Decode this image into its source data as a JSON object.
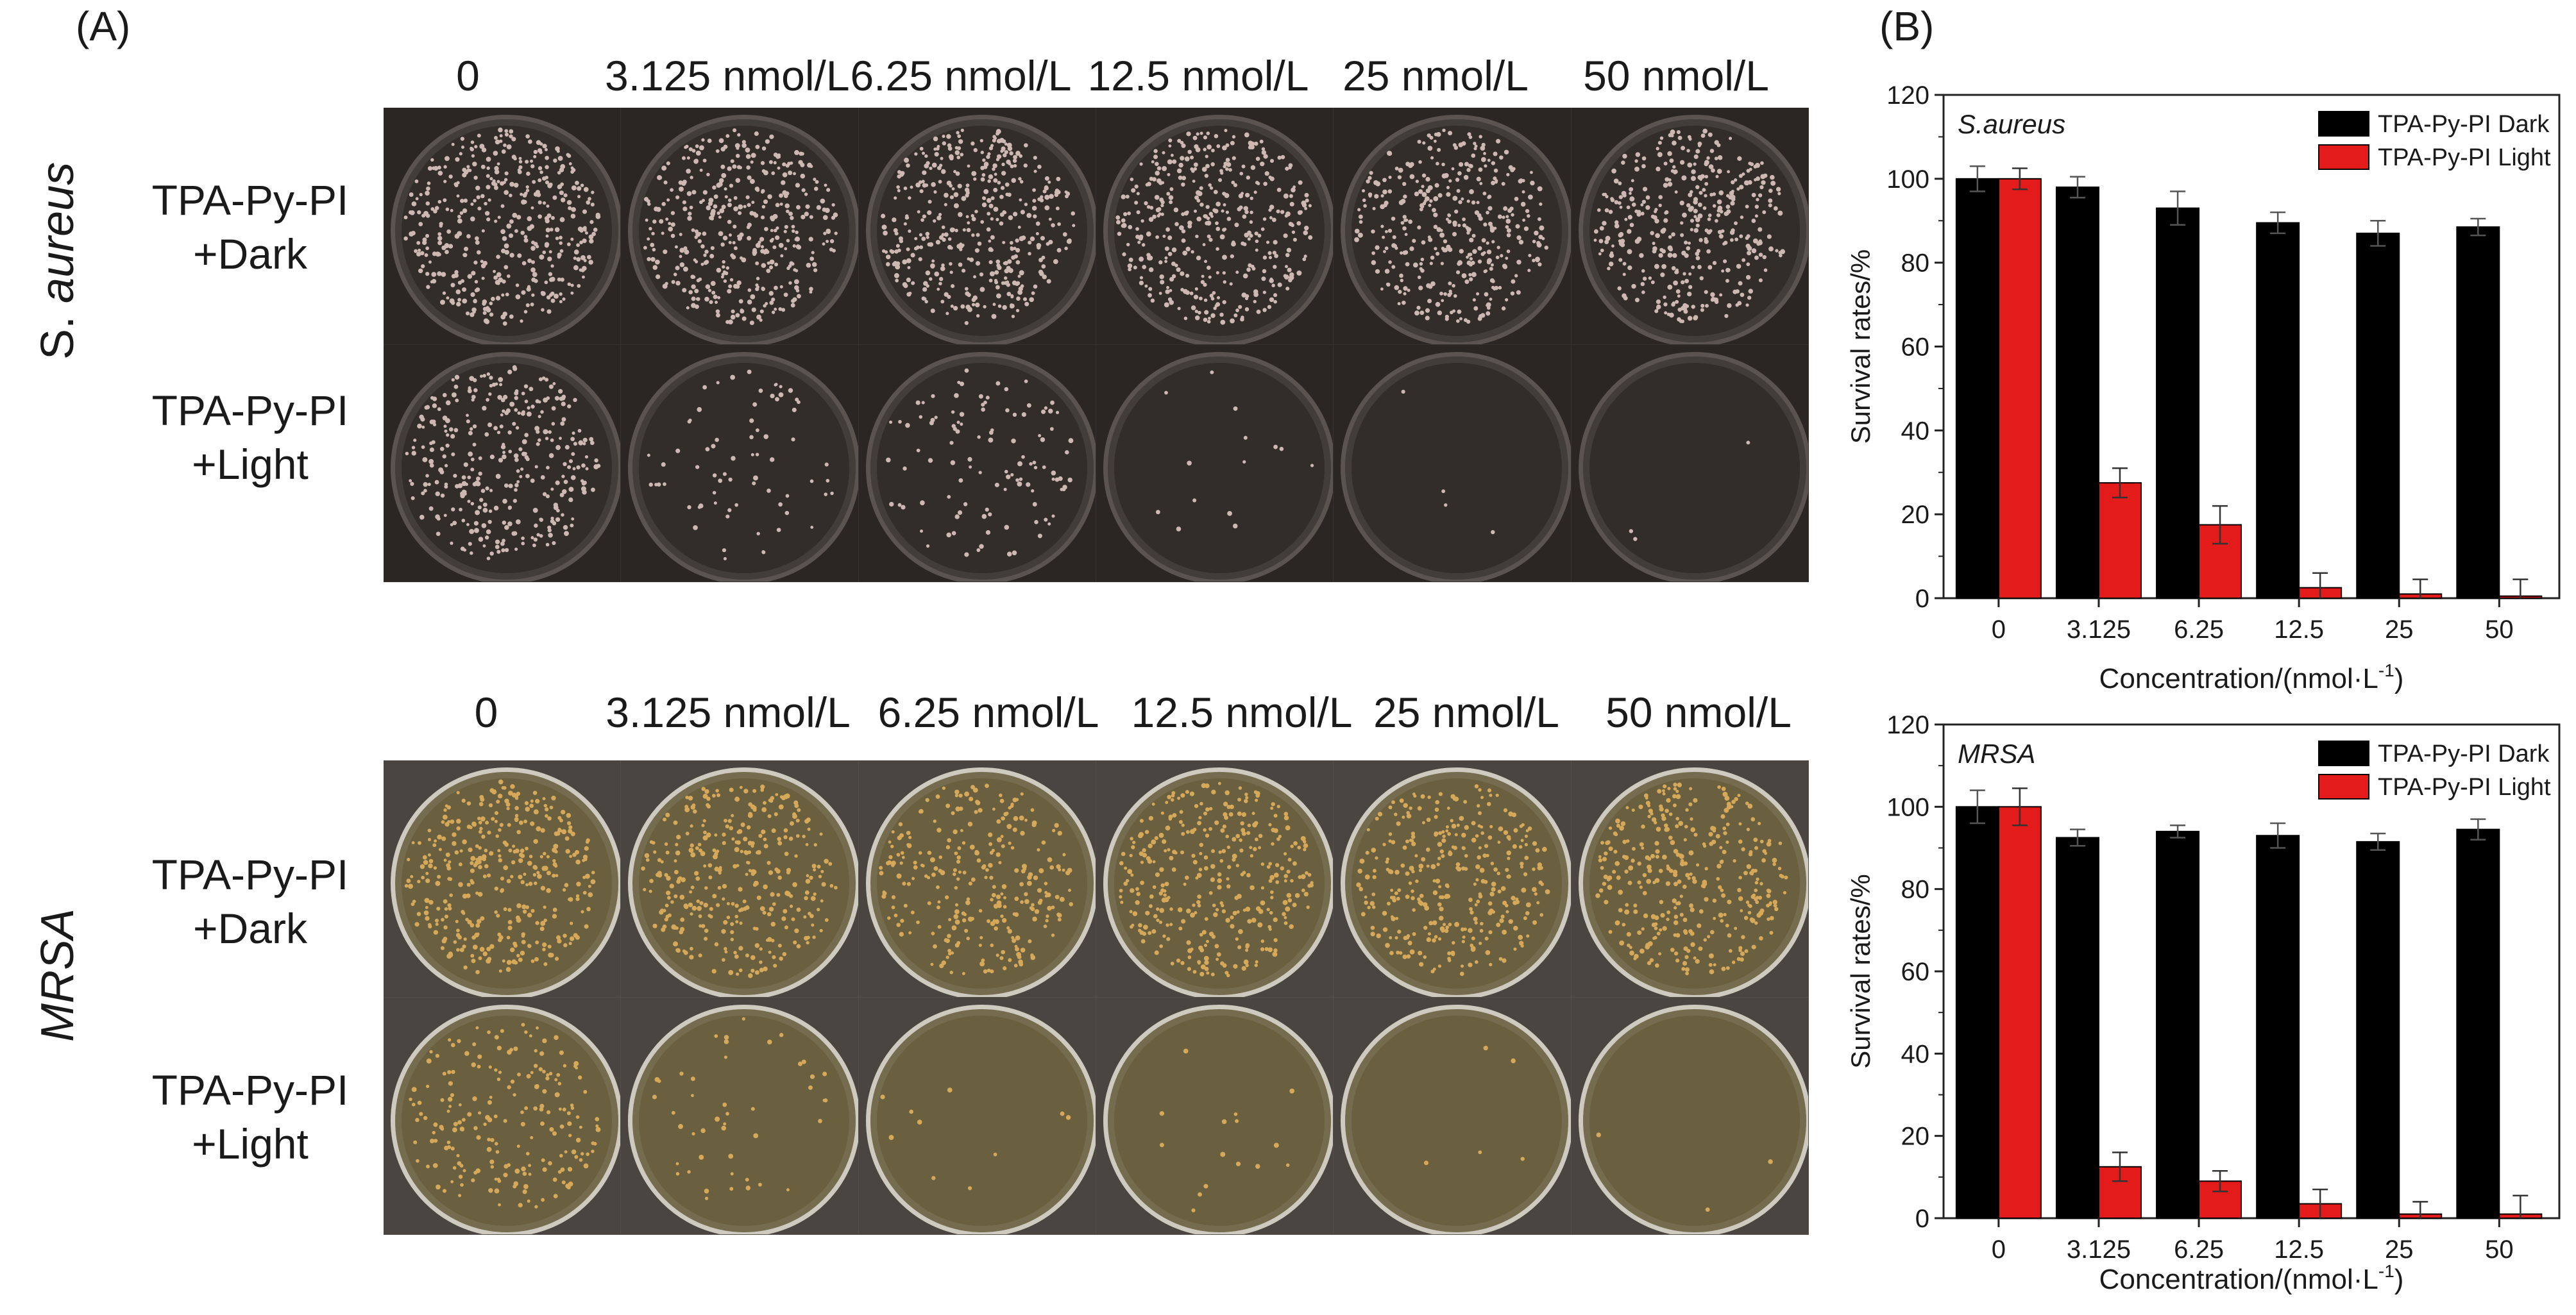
{
  "panel_a": {
    "label": "(A)",
    "top_group": {
      "strain_prefix": "S.",
      "strain_name": "aureus",
      "columns": [
        "0",
        "3.125 nmol/L",
        "6.25 nmol/L",
        "12.5 nmol/L",
        "25 nmol/L",
        "50 nmol/L"
      ],
      "rows": [
        {
          "line1": "TPA-Py-PI",
          "line2": "+Dark"
        },
        {
          "line1": "TPA-Py-PI",
          "line2": "+Light"
        }
      ],
      "colony_counts": [
        [
          420,
          400,
          420,
          400,
          370,
          390
        ],
        [
          330,
          70,
          110,
          14,
          4,
          3
        ]
      ]
    },
    "bottom_group": {
      "strain": "MRSA",
      "columns": [
        "0",
        "3.125 nmol/L",
        "6.25 nmol/L",
        "12.5 nmol/L",
        "25 nmol/L",
        "50 nmol/L"
      ],
      "rows": [
        {
          "line1": "TPA-Py-PI",
          "line2": "+Dark"
        },
        {
          "line1": "TPA-Py-PI",
          "line2": "+Light"
        }
      ],
      "colony_counts": [
        [
          360,
          330,
          280,
          340,
          330,
          350
        ],
        [
          200,
          45,
          10,
          15,
          5,
          3
        ]
      ]
    },
    "colors": {
      "dark_background": "#2b2623",
      "photo_background": "#4a4540",
      "colony_top": "#cdb8b3",
      "colony_bottom": "#d6a85a",
      "agar_bottom": "#6a6040"
    }
  },
  "panel_b": {
    "label": "(B)",
    "chart_data": [
      {
        "type": "bar",
        "annotation": "S.aureus",
        "categories": [
          "0",
          "3.125",
          "6.25",
          "12.5",
          "25",
          "50"
        ],
        "series": [
          {
            "name": "TPA-Py-PI Dark",
            "color": "#000000",
            "values": [
              100,
              98,
              93,
              89.5,
              87,
              88.5
            ],
            "errors": [
              3,
              2.5,
              4,
              2.5,
              3,
              2
            ]
          },
          {
            "name": "TPA-Py-PI Light",
            "color": "#e31b1b",
            "values": [
              100,
              27.5,
              17.5,
              2.5,
              1,
              0.5
            ],
            "errors": [
              2.5,
              3.5,
              4.5,
              3.5,
              3.5,
              4
            ]
          }
        ],
        "ylabel": "Survival rates/%",
        "xlabel": "Concentration/(nmol·L",
        "xlabel_sup": "-1",
        "xlabel_close": ")",
        "ylim": [
          0,
          120
        ],
        "yticks": [
          "0",
          "20",
          "40",
          "60",
          "80",
          "100",
          "120"
        ],
        "legend_position": "top-right"
      },
      {
        "type": "bar",
        "annotation": "MRSA",
        "categories": [
          "0",
          "3.125",
          "6.25",
          "12.5",
          "25",
          "50"
        ],
        "series": [
          {
            "name": "TPA-Py-PI Dark",
            "color": "#000000",
            "values": [
              100,
              92.5,
              94,
              93,
              91.5,
              94.5
            ],
            "errors": [
              4,
              2,
              1.5,
              3,
              2,
              2.5
            ]
          },
          {
            "name": "TPA-Py-PI Light",
            "color": "#e31b1b",
            "values": [
              100,
              12.5,
              9,
              3.5,
              1,
              1
            ],
            "errors": [
              4.5,
              3.5,
              2.5,
              3.5,
              3,
              4.5
            ]
          }
        ],
        "ylabel": "Survival rates/%",
        "xlabel": "Concentration/(nmol·L",
        "xlabel_sup": "-1",
        "xlabel_close": ")",
        "ylim": [
          0,
          120
        ],
        "yticks": [
          "0",
          "20",
          "40",
          "60",
          "80",
          "100",
          "120"
        ],
        "legend_position": "top-right"
      }
    ]
  }
}
